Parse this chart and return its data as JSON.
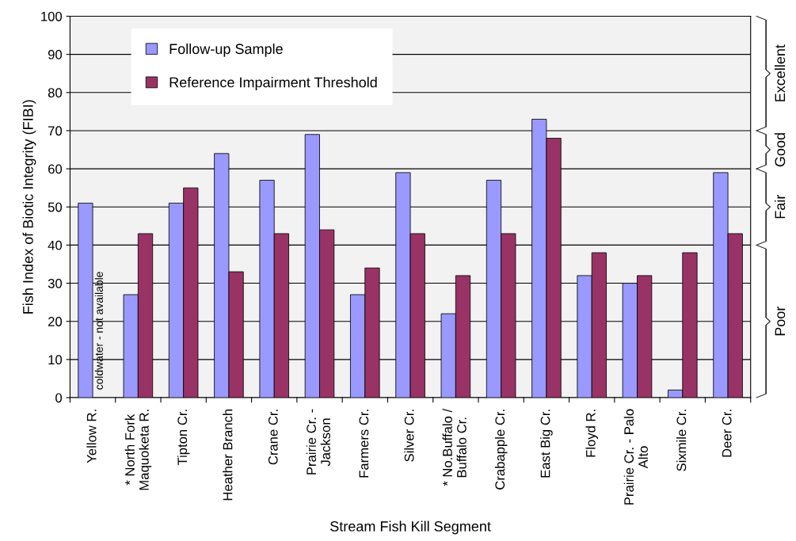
{
  "chart_data": {
    "type": "bar",
    "xlabel": "Stream Fish Kill Segment",
    "ylabel": "Fish Index of Biotic Integrity (FIBI)",
    "categories": [
      "Yellow R.",
      "* North Fork\nMaquoketa R.",
      "Tipton Cr.",
      "Heather Branch",
      "Crane Cr.",
      "Prairie Cr. -\nJackson",
      "Farmers Cr.",
      "Silver Cr.",
      "* No.Buffalo /\nBuffalo Cr.",
      "Crabapple Cr.",
      "East Big Cr.",
      "Floyd R.",
      "Prairie Cr. - Palo\nAlto",
      "Sixmile Cr.",
      "Deer Cr."
    ],
    "series": [
      {
        "name": "Follow-up Sample",
        "color": "#9999ff",
        "values": [
          51,
          27,
          51,
          64,
          57,
          69,
          27,
          59,
          22,
          57,
          73,
          32,
          30,
          2,
          59
        ]
      },
      {
        "name": "Reference Impairment Threshold",
        "color": "#993366",
        "values": [
          null,
          43,
          55,
          33,
          43,
          44,
          34,
          43,
          32,
          43,
          68,
          38,
          32,
          38,
          43
        ]
      }
    ],
    "ylim": [
      0,
      100
    ],
    "yticks": [
      0,
      10,
      20,
      30,
      40,
      50,
      60,
      70,
      80,
      90,
      100
    ],
    "grid": "y",
    "legend": "top left",
    "annotations": [
      {
        "text": "coldwater - not available",
        "x": "Yellow R."
      }
    ],
    "bands": [
      {
        "axis": "y",
        "from": 70,
        "to": 100,
        "label": "Excellent"
      },
      {
        "axis": "y",
        "from": 60,
        "to": 70,
        "label": "Good"
      },
      {
        "axis": "y",
        "from": 40,
        "to": 60,
        "label": "Fair"
      },
      {
        "axis": "y",
        "from": 0,
        "to": 40,
        "label": "Poor"
      }
    ]
  }
}
